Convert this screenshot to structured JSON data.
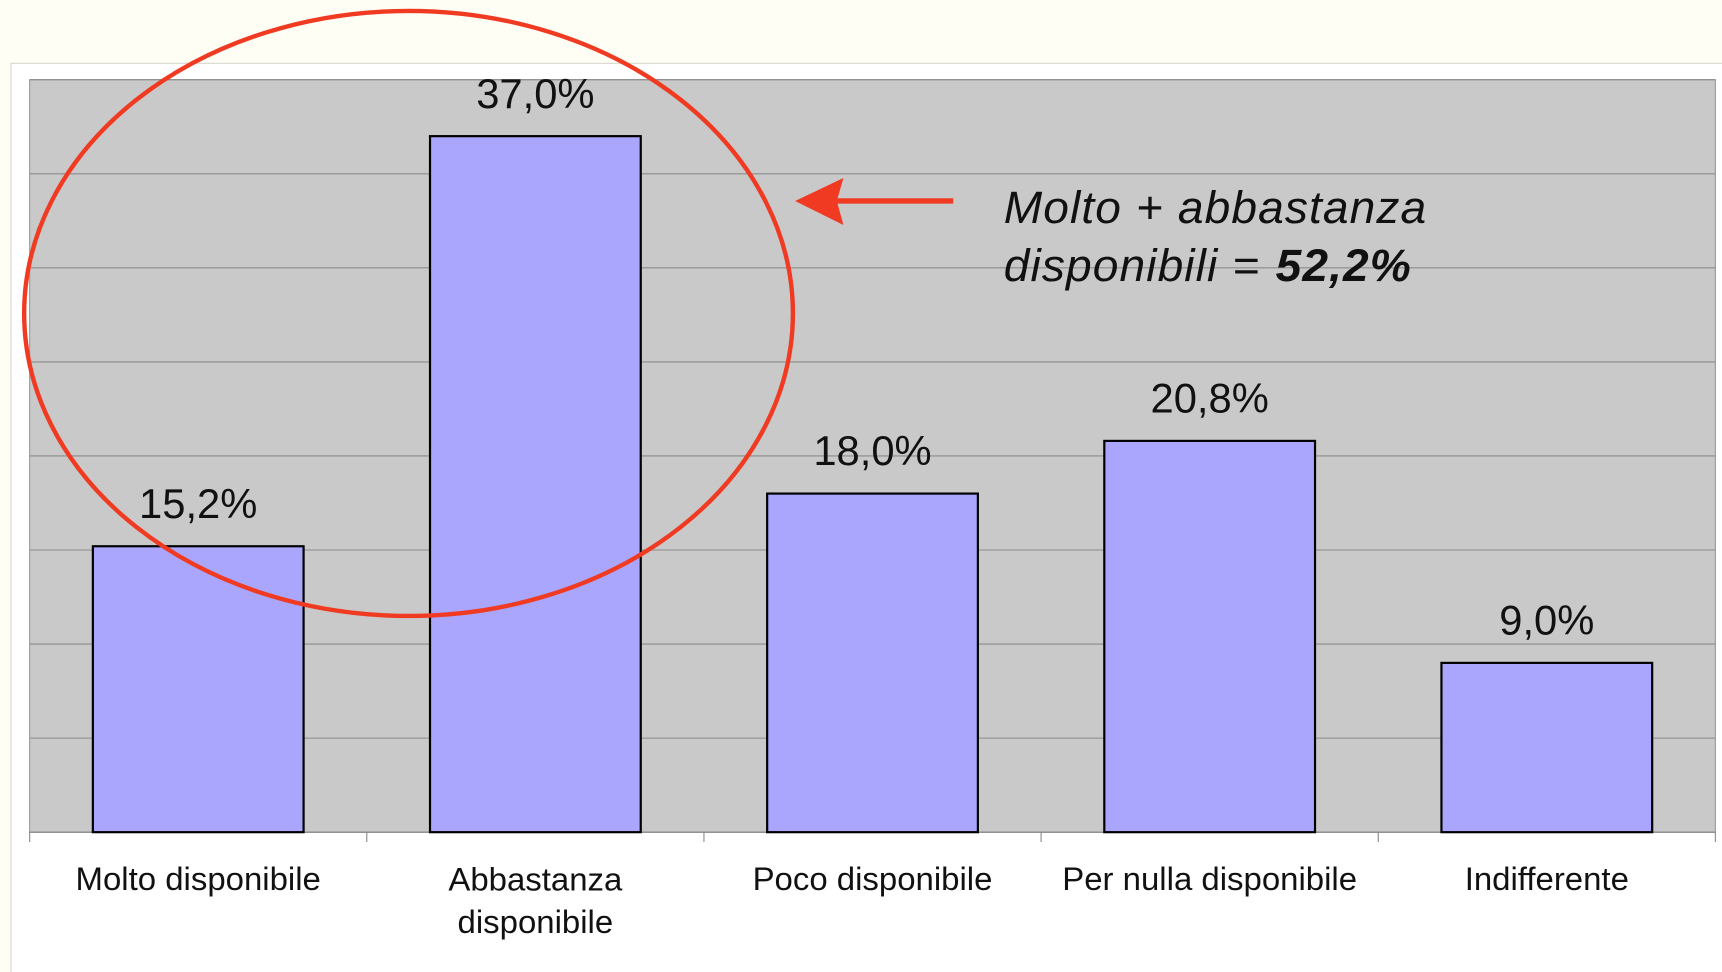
{
  "chart_data": {
    "type": "bar",
    "categories": [
      "Molto disponibile",
      "Abbastanza disponibile",
      "Poco disponibile",
      "Per nulla disponibile",
      "Indifferente"
    ],
    "values": [
      15.2,
      37.0,
      18.0,
      20.8,
      9.0
    ],
    "value_labels": [
      "15,2%",
      "37,0%",
      "18,0%",
      "20,8%",
      "9,0%"
    ],
    "color": "#aaa6fe",
    "ylim": [
      0,
      40
    ],
    "yticks": [
      0,
      5,
      10,
      15,
      20,
      25,
      30,
      35,
      40
    ],
    "grid": true,
    "annotation": [
      "Molto + abbastanza",
      "disponibili ="
    ],
    "annotation_highlight": "52,2%"
  }
}
